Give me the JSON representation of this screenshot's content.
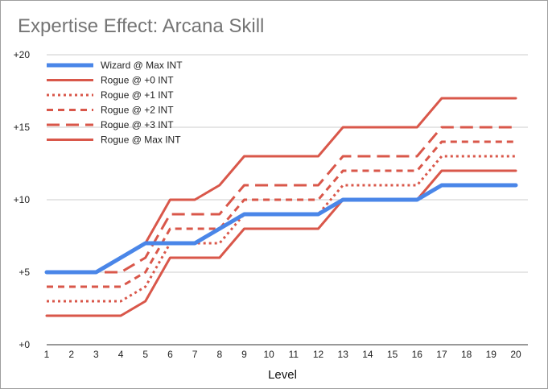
{
  "chart_data": {
    "type": "line",
    "title": "Expertise Effect: Arcana Skill",
    "xlabel": "Level",
    "ylabel": "",
    "x": [
      1,
      2,
      3,
      4,
      5,
      6,
      7,
      8,
      9,
      10,
      11,
      12,
      13,
      14,
      15,
      16,
      17,
      18,
      19,
      20
    ],
    "ylim": [
      0,
      20
    ],
    "yticks": [
      0,
      5,
      10,
      15,
      20
    ],
    "ytick_labels": [
      "+0",
      "+5",
      "+10",
      "+15",
      "+20"
    ],
    "grid": "horizontal",
    "legend_position": "top-left",
    "series": [
      {
        "name": "Wizard @ Max INT",
        "color": "#4a86e8",
        "style": "solid-thick",
        "values": [
          5,
          5,
          5,
          6,
          7,
          7,
          7,
          8,
          9,
          9,
          9,
          9,
          10,
          10,
          10,
          10,
          11,
          11,
          11,
          11
        ]
      },
      {
        "name": "Rogue @ +0 INT",
        "color": "#d9574a",
        "style": "solid",
        "values": [
          2,
          2,
          2,
          2,
          3,
          6,
          6,
          6,
          8,
          8,
          8,
          8,
          10,
          10,
          10,
          10,
          12,
          12,
          12,
          12
        ]
      },
      {
        "name": "Rogue @ +1 INT",
        "color": "#d9574a",
        "style": "dotted",
        "values": [
          3,
          3,
          3,
          3,
          4,
          7,
          7,
          7,
          9,
          9,
          9,
          9,
          11,
          11,
          11,
          11,
          13,
          13,
          13,
          13
        ]
      },
      {
        "name": "Rogue @ +2 INT",
        "color": "#d9574a",
        "style": "dashed",
        "values": [
          4,
          4,
          4,
          4,
          5,
          8,
          8,
          8,
          10,
          10,
          10,
          10,
          12,
          12,
          12,
          12,
          14,
          14,
          14,
          14
        ]
      },
      {
        "name": "Rogue @ +3 INT",
        "color": "#d9574a",
        "style": "long-dashed",
        "values": [
          5,
          5,
          5,
          5,
          6,
          9,
          9,
          9,
          11,
          11,
          11,
          11,
          13,
          13,
          13,
          13,
          15,
          15,
          15,
          15
        ]
      },
      {
        "name": "Rogue @ Max INT",
        "color": "#d9574a",
        "style": "solid",
        "values": [
          5,
          5,
          5,
          6,
          7,
          10,
          10,
          11,
          13,
          13,
          13,
          13,
          15,
          15,
          15,
          15,
          17,
          17,
          17,
          17
        ]
      }
    ]
  }
}
